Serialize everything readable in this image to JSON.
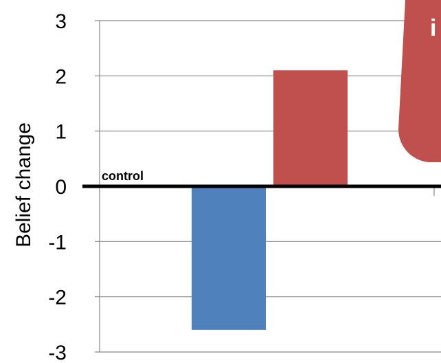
{
  "chart_data": {
    "type": "bar",
    "title": "",
    "xlabel": "",
    "ylabel": "Belief change",
    "ylim": [
      -3,
      3
    ],
    "yticks": [
      -3,
      -2,
      -1,
      0,
      1,
      2,
      3
    ],
    "grid": true,
    "baseline_label": "control",
    "categories": [
      "",
      ""
    ],
    "values": [
      -2.6,
      2.1
    ],
    "colors": [
      "#4F81BD",
      "#C0504D"
    ],
    "callout": {
      "text": "i",
      "color": "#C0504D"
    }
  }
}
